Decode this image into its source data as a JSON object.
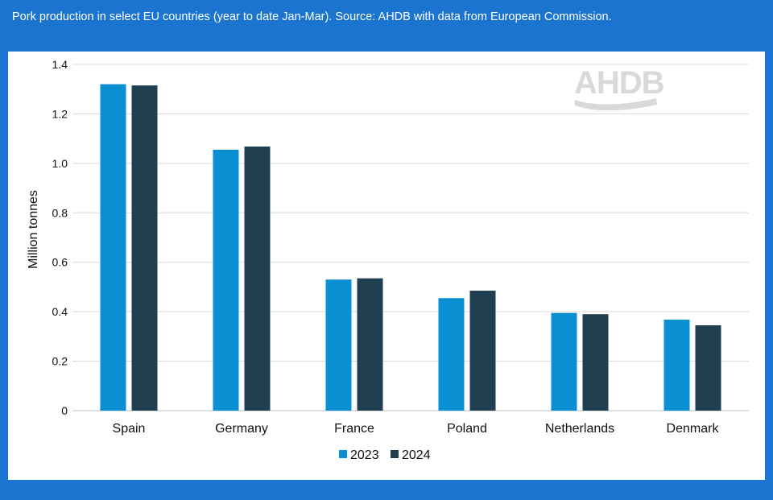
{
  "caption": "Pork production in select EU countries (year to date Jan-Mar). Source: AHDB with data from European Commission.",
  "logo": {
    "text": "AHDB"
  },
  "colors": {
    "background": "#1b74d0",
    "panel": "#ffffff",
    "series_2023": "#0b8fd3",
    "series_2024": "#203f50",
    "gridline": "#d9d9d9"
  },
  "chart_data": {
    "type": "bar",
    "title": "",
    "xlabel": "",
    "ylabel": "Million tonnes",
    "ylim": [
      0,
      1.4
    ],
    "yticks": [
      0,
      0.2,
      0.4,
      0.6,
      0.8,
      1.0,
      1.2,
      1.4
    ],
    "ytick_labels": [
      "0",
      "0.2",
      "0.4",
      "0.6",
      "0.8",
      "1.0",
      "1.2",
      "1.4"
    ],
    "categories": [
      "Spain",
      "Germany",
      "France",
      "Poland",
      "Netherlands",
      "Denmark"
    ],
    "series": [
      {
        "name": "2023",
        "values": [
          1.32,
          1.055,
          0.53,
          0.455,
          0.395,
          0.368
        ]
      },
      {
        "name": "2024",
        "values": [
          1.315,
          1.068,
          0.535,
          0.485,
          0.39,
          0.345
        ]
      }
    ],
    "legend_position": "bottom-center",
    "grid": true
  }
}
